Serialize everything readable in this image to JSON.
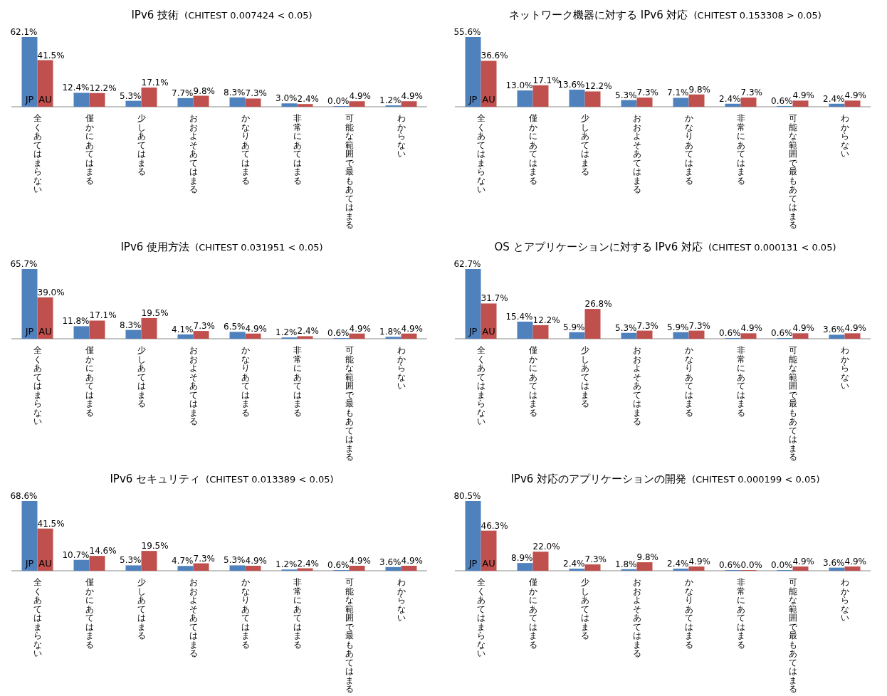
{
  "chart_data": [
    {
      "type": "bar",
      "title": "IPv6 技術",
      "subtitle": "(CHITEST 0.007424 < 0.05)",
      "categories": [
        "全くあてはまらない",
        "僅かにあてはまる",
        "少しあてはまる",
        "おおよそあてはまる",
        "かなりあてはまる",
        "非常にあてはまる",
        "可能な範囲で最もあてはまる",
        "わからない"
      ],
      "series": [
        {
          "name": "JP",
          "color": "#4f81bd",
          "values": [
            62.1,
            12.4,
            5.3,
            7.7,
            8.3,
            3.0,
            0.0,
            1.2
          ],
          "value_labels": [
            "62.1%",
            "12.4%",
            "5.3%",
            "7.7%",
            "8.3%",
            "3.0%",
            "0.0%",
            "1.2%"
          ]
        },
        {
          "name": "AU",
          "color": "#c0504d",
          "values": [
            41.5,
            12.2,
            17.1,
            9.8,
            7.3,
            2.4,
            4.9,
            4.9
          ],
          "value_labels": [
            "41.5%",
            "12.2%",
            "17.1%",
            "9.8%",
            "7.3%",
            "2.4%",
            "4.9%",
            "4.9%"
          ]
        }
      ]
    },
    {
      "type": "bar",
      "title": "ネットワーク機器に対する IPv6 対応",
      "subtitle": "(CHITEST 0.153308 > 0.05)",
      "categories": [
        "全くあてはまらない",
        "僅かにあてはまる",
        "少しあてはまる",
        "おおよそあてはまる",
        "かなりあてはまる",
        "非常にあてはまる",
        "可能な範囲で最もあてはまる",
        "わからない"
      ],
      "series": [
        {
          "name": "JP",
          "color": "#4f81bd",
          "values": [
            55.6,
            13.0,
            13.6,
            5.3,
            7.1,
            2.4,
            0.6,
            2.4
          ],
          "value_labels": [
            "55.6%",
            "13.0%",
            "13.6%",
            "5.3%",
            "7.1%",
            "2.4%",
            "0.6%",
            "2.4%"
          ]
        },
        {
          "name": "AU",
          "color": "#c0504d",
          "values": [
            36.6,
            17.1,
            12.2,
            7.3,
            9.8,
            7.3,
            4.9,
            4.9
          ],
          "value_labels": [
            "36.6%",
            "17.1%",
            "12.2%",
            "7.3%",
            "9.8%",
            "7.3%",
            "4.9%",
            "4.9%"
          ]
        }
      ]
    },
    {
      "type": "bar",
      "title": "IPv6 使用方法",
      "subtitle": "(CHITEST 0.031951 < 0.05)",
      "categories": [
        "全くあてはまらない",
        "僅かにあてはまる",
        "少しあてはまる",
        "おおよそあてはまる",
        "かなりあてはまる",
        "非常にあてはまる",
        "可能な範囲で最もあてはまる",
        "わからない"
      ],
      "series": [
        {
          "name": "JP",
          "color": "#4f81bd",
          "values": [
            65.7,
            11.8,
            8.3,
            4.1,
            6.5,
            1.2,
            0.6,
            1.8
          ],
          "value_labels": [
            "65.7%",
            "11.8%",
            "8.3%",
            "4.1%",
            "6.5%",
            "1.2%",
            "0.6%",
            "1.8%"
          ]
        },
        {
          "name": "AU",
          "color": "#c0504d",
          "values": [
            39.0,
            17.1,
            19.5,
            7.3,
            4.9,
            2.4,
            4.9,
            4.9
          ],
          "value_labels": [
            "39.0%",
            "17.1%",
            "19.5%",
            "7.3%",
            "4.9%",
            "2.4%",
            "4.9%",
            "4.9%"
          ]
        }
      ]
    },
    {
      "type": "bar",
      "title": "OS とアプリケーションに対する IPv6 対応",
      "subtitle": "(CHITEST 0.000131 < 0.05)",
      "categories": [
        "全くあてはまらない",
        "僅かにあてはまる",
        "少しあてはまる",
        "おおよそあてはまる",
        "かなりあてはまる",
        "非常にあてはまる",
        "可能な範囲で最もあてはまる",
        "わからない"
      ],
      "series": [
        {
          "name": "JP",
          "color": "#4f81bd",
          "values": [
            62.7,
            15.4,
            5.9,
            5.3,
            5.9,
            0.6,
            0.6,
            3.6
          ],
          "value_labels": [
            "62.7%",
            "15.4%",
            "5.9%",
            "5.3%",
            "5.9%",
            "0.6%",
            "0.6%",
            "3.6%"
          ]
        },
        {
          "name": "AU",
          "color": "#c0504d",
          "values": [
            31.7,
            12.2,
            26.8,
            7.3,
            7.3,
            4.9,
            4.9,
            4.9
          ],
          "value_labels": [
            "31.7%",
            "12.2%",
            "26.8%",
            "7.3%",
            "7.3%",
            "4.9%",
            "4.9%",
            "4.9%"
          ]
        }
      ]
    },
    {
      "type": "bar",
      "title": "IPv6 セキュリティ",
      "subtitle": "(CHITEST 0.013389 < 0.05)",
      "categories": [
        "全くあてはまらない",
        "僅かにあてはまる",
        "少しあてはまる",
        "おおよそあてはまる",
        "かなりあてはまる",
        "非常にあてはまる",
        "可能な範囲で最もあてはまる",
        "わからない"
      ],
      "series": [
        {
          "name": "JP",
          "color": "#4f81bd",
          "values": [
            68.6,
            10.7,
            5.3,
            4.7,
            5.3,
            1.2,
            0.6,
            3.6
          ],
          "value_labels": [
            "68.6%",
            "10.7%",
            "5.3%",
            "4.7%",
            "5.3%",
            "1.2%",
            "0.6%",
            "3.6%"
          ]
        },
        {
          "name": "AU",
          "color": "#c0504d",
          "values": [
            41.5,
            14.6,
            19.5,
            7.3,
            4.9,
            2.4,
            4.9,
            4.9
          ],
          "value_labels": [
            "41.5%",
            "14.6%",
            "19.5%",
            "7.3%",
            "4.9%",
            "2.4%",
            "4.9%",
            "4.9%"
          ]
        }
      ]
    },
    {
      "type": "bar",
      "title": "IPv6 対応のアプリケーションの開発",
      "subtitle": "(CHITEST 0.000199 < 0.05)",
      "categories": [
        "全くあてはまらない",
        "僅かにあてはまる",
        "少しあてはまる",
        "おおよそあてはまる",
        "かなりあてはまる",
        "非常にあてはまる",
        "可能な範囲で最もあてはまる",
        "わからない"
      ],
      "series": [
        {
          "name": "JP",
          "color": "#4f81bd",
          "values": [
            80.5,
            8.9,
            2.4,
            1.8,
            2.4,
            0.6,
            0.0,
            3.6
          ],
          "value_labels": [
            "80.5%",
            "8.9%",
            "2.4%",
            "1.8%",
            "2.4%",
            "0.6%",
            "0.0%",
            "3.6%"
          ]
        },
        {
          "name": "AU",
          "color": "#c0504d",
          "values": [
            46.3,
            22.0,
            7.3,
            9.8,
            4.9,
            0.0,
            4.9,
            4.9
          ],
          "value_labels": [
            "46.3%",
            "22.0%",
            "7.3%",
            "9.8%",
            "4.9%",
            "0.0%",
            "4.9%",
            "4.9%"
          ]
        }
      ]
    }
  ]
}
